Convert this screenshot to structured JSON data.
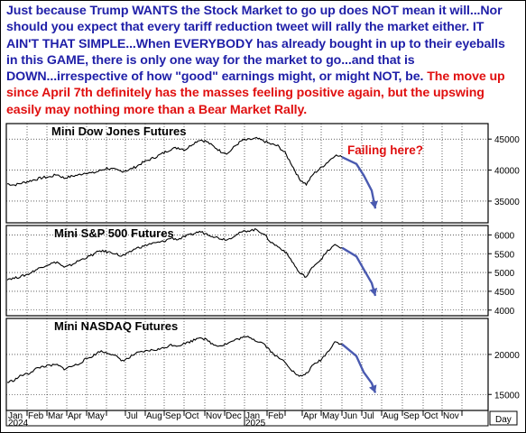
{
  "headline": {
    "blue_text": "Just because Trump WANTS the Stock Market to go up does NOT mean it will...Nor should you expect that every tariff reduction tweet will rally the market either. IT AIN'T THAT SIMPLE...When EVERYBODY has already bought in up to their eyeballs in this GAME, there is only one way for the market to go...and that is DOWN...irrespective of how \"good\" earnings might, or might NOT, be.",
    "red_text": " The move up since April 7th definitely has the masses feeling positive again, but the upswing easily may nothing more than a Bear Market Rally."
  },
  "colors": {
    "blue": "#1f1fa8",
    "red": "#e01010",
    "arrow": "#4a5ab0",
    "line": "#000000"
  },
  "chart_data": [
    {
      "type": "line",
      "title": "Mini Dow Jones Futures",
      "annotation": "Failing here?",
      "ylim": [
        31500,
        47500
      ],
      "yticks": [
        35000,
        40000,
        45000
      ],
      "ytick_labels": [
        "35000",
        "40000",
        "45000"
      ],
      "series": [
        {
          "values": [
            37800,
            37600,
            37900,
            38200,
            38500,
            38800,
            38900,
            39300,
            38700,
            39000,
            39200,
            39600,
            39500,
            39900,
            40300,
            40100,
            39800,
            40000,
            40500,
            41200,
            41700,
            42200,
            42800,
            43400,
            43600,
            43300,
            44200,
            44900,
            44600,
            43800,
            43000,
            42700,
            43900,
            44800,
            44900,
            45100,
            44700,
            44200,
            43900,
            42800,
            40800,
            38600,
            37700,
            39400,
            40300,
            41300,
            42400,
            42100
          ]
        },
        {
          "values": [
            42100,
            41000,
            39200,
            36700,
            33800
          ]
        }
      ]
    },
    {
      "type": "line",
      "title": "Mini S&P 500 Futures",
      "ylim": [
        3850,
        6250
      ],
      "yticks": [
        4000,
        4500,
        5000,
        5500,
        6000
      ],
      "ytick_labels": [
        "4000",
        "4500",
        "5000",
        "5500",
        "6000"
      ],
      "series": [
        {
          "values": [
            4830,
            4850,
            4900,
            4960,
            5070,
            5160,
            5230,
            5280,
            5130,
            5200,
            5310,
            5390,
            5470,
            5580,
            5550,
            5520,
            5430,
            5510,
            5640,
            5690,
            5760,
            5790,
            5830,
            5920,
            5880,
            5960,
            6020,
            6090,
            6030,
            5960,
            5900,
            5880,
            5990,
            6080,
            6120,
            6140,
            6030,
            5810,
            5690,
            5560,
            5300,
            4990,
            4880,
            5180,
            5340,
            5570,
            5730,
            5660
          ]
        },
        {
          "values": [
            5660,
            5430,
            5090,
            4720,
            4380
          ]
        }
      ]
    },
    {
      "type": "line",
      "title": "Mini NASDAQ Futures",
      "ylim": [
        13000,
        24500
      ],
      "yticks": [
        15000,
        20000
      ],
      "ytick_labels": [
        "15000",
        "20000"
      ],
      "series": [
        {
          "values": [
            16500,
            16800,
            17400,
            17600,
            18200,
            18500,
            18600,
            18700,
            18200,
            18500,
            18800,
            19400,
            19800,
            20400,
            20200,
            20000,
            19200,
            19500,
            20100,
            20300,
            20500,
            20600,
            20800,
            21200,
            21100,
            21400,
            21700,
            22200,
            21800,
            21200,
            21100,
            21400,
            21800,
            22100,
            22200,
            21700,
            21400,
            20400,
            19600,
            19100,
            18000,
            17200,
            17600,
            18700,
            19300,
            20300,
            21600,
            21300
          ]
        },
        {
          "values": [
            21300,
            19800,
            17800,
            16400,
            15200
          ]
        }
      ]
    }
  ],
  "x_axis": {
    "month_labels": [
      "Jan",
      "Feb",
      "Mar",
      "Apr",
      "May",
      "Jul",
      "Aug",
      "Sep",
      "Oct",
      "Nov",
      "Dec",
      "Jan",
      "Feb",
      "Apr",
      "May",
      "Jun",
      "Jul",
      "Aug",
      "Sep",
      "Oct",
      "Nov"
    ],
    "year_labels": [
      "2024",
      "2025"
    ],
    "unit_label": "Day"
  }
}
